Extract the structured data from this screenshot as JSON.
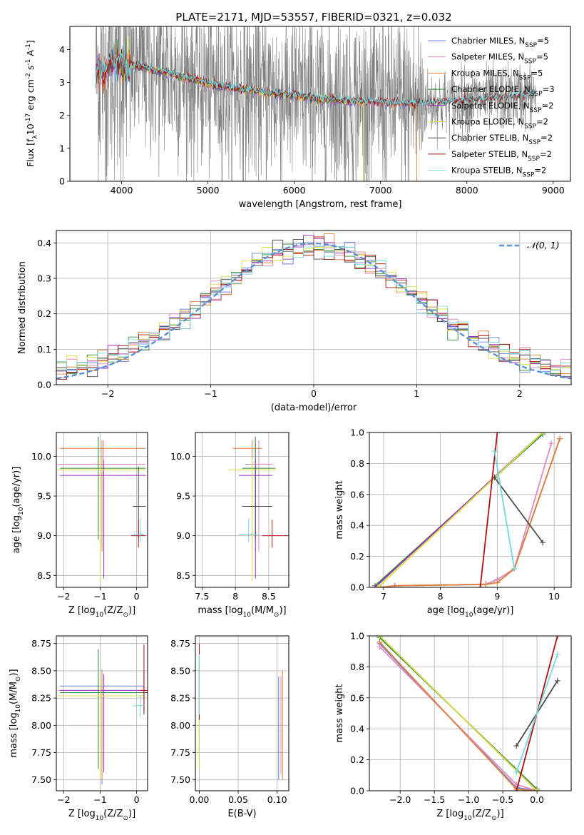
{
  "figure": {
    "title": "PLATE=2171, MJD=53557, FIBERID=0321, z=0.032"
  },
  "colors": {
    "Chabrier MILES": "#6b7fe0",
    "Salpeter MILES": "#e08ac0",
    "Kroupa MILES": "#e0803a",
    "Chabrier ELODIE": "#2f8a2f",
    "Salpeter ELODIE": "#9a2fc0",
    "Kroupa ELODIE": "#d8e040",
    "Chabrier STELIB": "#4a4a4a",
    "Salpeter STELIB": "#b01010",
    "Kroupa STELIB": "#70d8e0",
    "observed": "#808080",
    "normal": "#5b8fd6"
  },
  "chart_data": [
    {
      "id": "spectrum",
      "type": "line",
      "xlabel": "wavelength [Angstrom, rest frame]",
      "ylabel_parts": [
        "Flux [f",
        "λ",
        "10",
        "-17",
        " erg cm",
        "-2",
        " s",
        "-1",
        " A",
        "-1",
        "]"
      ],
      "xlim": [
        3400,
        9200
      ],
      "ylim": [
        0,
        4.7
      ],
      "xticks": [
        4000,
        5000,
        6000,
        7000,
        8000,
        9000
      ],
      "yticks": [
        0,
        1,
        2,
        3,
        4
      ],
      "legend_position": "top-right",
      "series": [
        {
          "name": "Chabrier MILES, N",
          "sub": "SSP",
          "suffix": "=5",
          "key": "Chabrier MILES",
          "range": [
            3700,
            7420
          ]
        },
        {
          "name": "Salpeter MILES, N",
          "sub": "SSP",
          "suffix": "=5",
          "key": "Salpeter MILES",
          "range": [
            3700,
            7420
          ]
        },
        {
          "name": "Kroupa MILES, N",
          "sub": "SSP",
          "suffix": "=5",
          "key": "Kroupa MILES",
          "range": [
            3700,
            7420
          ]
        },
        {
          "name": "Chabrier ELODIE, N",
          "sub": "SSP",
          "suffix": "=3",
          "key": "Chabrier ELODIE",
          "range": [
            3900,
            6800
          ]
        },
        {
          "name": "Salpeter ELODIE, N",
          "sub": "SSP",
          "suffix": "=2",
          "key": "Salpeter ELODIE",
          "range": [
            3900,
            6800
          ]
        },
        {
          "name": "Kroupa ELODIE, N",
          "sub": "SSP",
          "suffix": "=2",
          "key": "Kroupa ELODIE",
          "range": [
            3900,
            6800
          ]
        },
        {
          "name": "Chabrier STELIB, N",
          "sub": "SSP",
          "suffix": "=2",
          "key": "Chabrier STELIB",
          "range": [
            3700,
            8800
          ]
        },
        {
          "name": "Salpeter STELIB, N",
          "sub": "SSP",
          "suffix": "=2",
          "key": "Salpeter STELIB",
          "range": [
            3700,
            8800
          ]
        },
        {
          "name": "Kroupa STELIB, N",
          "sub": "SSP",
          "suffix": "=2",
          "key": "Kroupa STELIB",
          "range": [
            3700,
            8800
          ]
        }
      ],
      "observed_range": [
        3700,
        8800
      ],
      "continuum_x": [
        3700,
        3800,
        3900,
        4000,
        4200,
        4400,
        4600,
        4800,
        5000,
        5500,
        6000,
        6500,
        7000,
        7500,
        8000,
        8500,
        8800
      ],
      "continuum_y": [
        3.4,
        3.3,
        3.7,
        3.5,
        3.5,
        3.35,
        3.25,
        3.1,
        2.95,
        2.75,
        2.6,
        2.45,
        2.4,
        2.35,
        2.45,
        2.55,
        2.65
      ]
    },
    {
      "id": "residuals",
      "type": "histogram",
      "xlabel": "(data-model)/error",
      "ylabel": "Normed distribution",
      "xlim": [
        -2.5,
        2.5
      ],
      "ylim": [
        0,
        0.435
      ],
      "xticks": [
        -2,
        -1,
        0,
        1,
        2
      ],
      "yticks": [
        0.0,
        0.1,
        0.2,
        0.3,
        0.4
      ],
      "legend": "𝒩(0, 1)",
      "legend_position": "top-right",
      "bins": 50,
      "normal": {
        "mu": 0,
        "sigma": 1
      }
    },
    {
      "id": "age-vs-z",
      "type": "errorbar",
      "xlabel": [
        "Z [log",
        "10",
        "(Z/Z",
        "⊙",
        ")]"
      ],
      "ylabel": [
        "age  [log",
        "10",
        "(age/yr)]"
      ],
      "xlim": [
        -2.2,
        0.3
      ],
      "ylim": [
        8.35,
        10.3
      ],
      "xticks": [
        -2,
        -1,
        0
      ],
      "yticks": [
        8.5,
        9.0,
        9.5,
        10.0
      ],
      "points": [
        {
          "key": "Chabrier MILES",
          "x": -0.95,
          "xerr": [
            1.15,
            1.15
          ],
          "y": 9.9,
          "yerr": [
            1.1,
            0.3
          ]
        },
        {
          "key": "Salpeter MILES",
          "x": -0.9,
          "xerr": [
            1.25,
            1.15
          ],
          "y": 9.9,
          "yerr": [
            1.1,
            0.3
          ]
        },
        {
          "key": "Kroupa MILES",
          "x": -0.95,
          "xerr": [
            1.15,
            1.2
          ],
          "y": 10.1,
          "yerr": [
            1.3,
            0.1
          ]
        },
        {
          "key": "Chabrier ELODIE",
          "x": -1.05,
          "xerr": [
            1.05,
            1.3
          ],
          "y": 9.85,
          "yerr": [
            0.9,
            0.4
          ]
        },
        {
          "key": "Salpeter ELODIE",
          "x": -0.9,
          "xerr": [
            1.2,
            1.15
          ],
          "y": 9.76,
          "yerr": [
            1.3,
            0.2
          ]
        },
        {
          "key": "Kroupa ELODIE",
          "x": -1.0,
          "xerr": [
            1.15,
            1.25
          ],
          "y": 9.83,
          "yerr": [
            1.4,
            0.15
          ]
        },
        {
          "key": "Chabrier STELIB",
          "x": 0.05,
          "xerr": [
            0.15,
            0.2
          ],
          "y": 9.37,
          "yerr": [
            0.4,
            0.5
          ]
        },
        {
          "key": "Salpeter STELIB",
          "x": 0.05,
          "xerr": [
            0.2,
            0.2
          ],
          "y": 9.0,
          "yerr": [
            0.15,
            0.2
          ]
        },
        {
          "key": "Kroupa STELIB",
          "x": 0.1,
          "xerr": [
            0.2,
            0.1
          ],
          "y": 9.02,
          "yerr": [
            0.1,
            0.2
          ]
        }
      ]
    },
    {
      "id": "age-vs-mass",
      "type": "errorbar",
      "xlabel": [
        "mass [log",
        "10",
        "(M/M",
        "⊙",
        ")]"
      ],
      "ylabel": null,
      "xlim": [
        7.4,
        8.8
      ],
      "ylim": [
        8.35,
        10.3
      ],
      "xticks": [
        7.5,
        8.0,
        8.5
      ],
      "yticks": [
        8.5,
        9.0,
        9.5,
        10.0
      ],
      "points": [
        {
          "key": "Chabrier MILES",
          "x": 8.3,
          "xerr": [
            0.15,
            0.2
          ],
          "y": 9.9,
          "yerr": [
            1.1,
            0.3
          ]
        },
        {
          "key": "Salpeter MILES",
          "x": 8.35,
          "xerr": [
            0.15,
            0.2
          ],
          "y": 9.9,
          "yerr": [
            1.1,
            0.3
          ]
        },
        {
          "key": "Kroupa MILES",
          "x": 8.25,
          "xerr": [
            0.3,
            0.15
          ],
          "y": 10.1,
          "yerr": [
            1.3,
            0.1
          ]
        },
        {
          "key": "Chabrier ELODIE",
          "x": 8.3,
          "xerr": [
            0.2,
            0.3
          ],
          "y": 9.85,
          "yerr": [
            0.9,
            0.4
          ]
        },
        {
          "key": "Salpeter ELODIE",
          "x": 8.3,
          "xerr": [
            0.25,
            0.25
          ],
          "y": 9.76,
          "yerr": [
            1.3,
            0.2
          ]
        },
        {
          "key": "Kroupa ELODIE",
          "x": 8.25,
          "xerr": [
            0.35,
            0.35
          ],
          "y": 9.83,
          "yerr": [
            1.4,
            0.15
          ]
        },
        {
          "key": "Chabrier STELIB",
          "x": 8.3,
          "xerr": [
            0.2,
            0.25
          ],
          "y": 9.37,
          "yerr": [
            0.4,
            0.5
          ]
        },
        {
          "key": "Salpeter STELIB",
          "x": 8.55,
          "xerr": [
            0.15,
            0.3
          ],
          "y": 9.0,
          "yerr": [
            0.15,
            0.2
          ]
        },
        {
          "key": "Kroupa STELIB",
          "x": 8.2,
          "xerr": [
            0.15,
            0.15
          ],
          "y": 9.02,
          "yerr": [
            0.1,
            0.2
          ]
        }
      ]
    },
    {
      "id": "weight-vs-age",
      "type": "line",
      "xlabel": [
        "age  [log",
        "10",
        "(age/yr)]"
      ],
      "ylabel": "mass weight",
      "xlim": [
        6.75,
        10.3
      ],
      "ylim": [
        0,
        1
      ],
      "xticks": [
        7,
        8,
        9,
        10
      ],
      "yticks": [
        0.0,
        0.2,
        0.4,
        0.6,
        0.8,
        1.0
      ],
      "lines": [
        {
          "key": "Chabrier MILES",
          "x": [
            6.95,
            7.2,
            8.8,
            9.0,
            9.3,
            10.1
          ],
          "y": [
            0.0,
            0.01,
            0.02,
            0.05,
            0.12,
            0.96
          ]
        },
        {
          "key": "Salpeter MILES",
          "x": [
            6.95,
            7.2,
            8.8,
            9.0,
            9.3,
            9.95
          ],
          "y": [
            0.0,
            0.01,
            0.02,
            0.05,
            0.12,
            0.93
          ]
        },
        {
          "key": "Kroupa MILES",
          "x": [
            6.95,
            7.2,
            8.8,
            9.0,
            9.3,
            10.1
          ],
          "y": [
            0.0,
            0.01,
            0.02,
            0.03,
            0.12,
            0.96
          ]
        },
        {
          "key": "Chabrier ELODIE",
          "x": [
            6.85,
            9.8
          ],
          "y": [
            0.01,
            0.99
          ]
        },
        {
          "key": "Salpeter ELODIE",
          "x": [
            6.85,
            9.8
          ],
          "y": [
            0.0,
            1.0
          ]
        },
        {
          "key": "Kroupa ELODIE",
          "x": [
            6.9,
            9.8
          ],
          "y": [
            0.0,
            1.0
          ]
        },
        {
          "key": "Chabrier STELIB",
          "x": [
            8.95,
            9.8
          ],
          "y": [
            0.71,
            0.29
          ]
        },
        {
          "key": "Salpeter STELIB",
          "x": [
            8.7,
            9.0
          ],
          "y": [
            0.0,
            1.0
          ]
        },
        {
          "key": "Kroupa STELIB",
          "x": [
            8.95,
            9.3
          ],
          "y": [
            0.88,
            0.12
          ]
        }
      ]
    },
    {
      "id": "mass-vs-z",
      "type": "errorbar",
      "xlabel": [
        "Z [log",
        "10",
        "(Z/Z",
        "⊙",
        ")]"
      ],
      "ylabel": [
        "mass [log",
        "10",
        "(M/M",
        "⊙",
        ")]"
      ],
      "xlim": [
        -2.2,
        0.3
      ],
      "ylim": [
        7.4,
        8.82
      ],
      "xticks": [
        -2,
        -1,
        0
      ],
      "yticks": [
        7.5,
        7.75,
        8.0,
        8.25,
        8.5,
        8.75
      ],
      "points": [
        {
          "key": "Chabrier MILES",
          "x": -0.95,
          "xerr": [
            1.15,
            1.15
          ],
          "y": 8.36,
          "yerr": [
            0.9,
            0.15
          ]
        },
        {
          "key": "Salpeter MILES",
          "x": -0.9,
          "xerr": [
            1.25,
            1.15
          ],
          "y": 8.32,
          "yerr": [
            0.7,
            0.15
          ]
        },
        {
          "key": "Kroupa MILES",
          "x": -0.95,
          "xerr": [
            1.15,
            1.2
          ],
          "y": 8.3,
          "yerr": [
            0.8,
            0.2
          ]
        },
        {
          "key": "Chabrier ELODIE",
          "x": -1.05,
          "xerr": [
            1.05,
            1.3
          ],
          "y": 8.3,
          "yerr": [
            0.7,
            0.4
          ]
        },
        {
          "key": "Salpeter ELODIE",
          "x": -0.9,
          "xerr": [
            1.2,
            1.15
          ],
          "y": 8.32,
          "yerr": [
            0.75,
            0.15
          ]
        },
        {
          "key": "Kroupa ELODIE",
          "x": -1.0,
          "xerr": [
            1.15,
            1.25
          ],
          "y": 8.27,
          "yerr": [
            0.75,
            0.15
          ]
        },
        {
          "key": "Chabrier STELIB",
          "x": 0.2,
          "xerr": [
            0.1,
            0.1
          ],
          "y": 8.3,
          "yerr": [
            0.2,
            0.2
          ]
        },
        {
          "key": "Salpeter STELIB",
          "x": 0.2,
          "xerr": [
            0.1,
            0.1
          ],
          "y": 8.32,
          "yerr": [
            0.2,
            0.42
          ]
        },
        {
          "key": "Kroupa STELIB",
          "x": 0.1,
          "xerr": [
            0.2,
            0.1
          ],
          "y": 8.18,
          "yerr": [
            0.1,
            0.1
          ]
        }
      ]
    },
    {
      "id": "mass-vs-ebv",
      "type": "errorbar",
      "xlabel": "E(B-V)",
      "ylabel": null,
      "xlim": [
        -0.005,
        0.115
      ],
      "ylim": [
        7.4,
        8.82
      ],
      "xticks": [
        0.0,
        0.05,
        0.1
      ],
      "yticks": [
        7.5,
        7.75,
        8.0,
        8.25,
        8.5,
        8.75
      ],
      "points": [
        {
          "key": "Chabrier MILES",
          "x": 0.102,
          "y": 8.0,
          "yerr": [
            0.5,
            0.45
          ]
        },
        {
          "key": "Salpeter MILES",
          "x": 0.105,
          "y": 8.0,
          "yerr": [
            0.45,
            0.45
          ]
        },
        {
          "key": "Kroupa MILES",
          "x": 0.107,
          "y": 8.0,
          "yerr": [
            0.5,
            0.5
          ]
        },
        {
          "key": "Chabrier ELODIE",
          "x": 0.0,
          "y": 8.1,
          "yerr": [
            0.5,
            0.5
          ]
        },
        {
          "key": "Salpeter ELODIE",
          "x": 0.0,
          "y": 8.1,
          "yerr": [
            0.4,
            0.4
          ]
        },
        {
          "key": "Kroupa ELODIE",
          "x": 0.0,
          "y": 8.1,
          "yerr": [
            0.5,
            0.5
          ]
        },
        {
          "key": "Chabrier STELIB",
          "x": 0.0,
          "y": 8.35,
          "yerr": [
            0.25,
            0.3
          ]
        },
        {
          "key": "Salpeter STELIB",
          "x": 0.0,
          "y": 8.35,
          "yerr": [
            0.3,
            0.4
          ]
        },
        {
          "key": "Kroupa STELIB",
          "x": 0.0,
          "y": 8.3,
          "yerr": [
            0.2,
            0.35
          ]
        }
      ]
    },
    {
      "id": "weight-vs-z",
      "type": "line",
      "xlabel": [
        "Z [log",
        "10",
        "(Z/Z",
        "⊙",
        ")]"
      ],
      "ylabel": "mass weight",
      "xlim": [
        -2.45,
        0.5
      ],
      "ylim": [
        0,
        1
      ],
      "xticks": [
        -2.0,
        -1.5,
        -1.0,
        -0.5,
        0.0
      ],
      "yticks": [
        0.0,
        0.2,
        0.4,
        0.6,
        0.8,
        1.0
      ],
      "lines": [
        {
          "key": "Chabrier MILES",
          "x": [
            -2.3,
            -0.3,
            0.0
          ],
          "y": [
            0.95,
            0.02,
            0.0
          ]
        },
        {
          "key": "Salpeter MILES",
          "x": [
            -2.3,
            -0.3,
            0.0
          ],
          "y": [
            0.93,
            0.04,
            0.0
          ]
        },
        {
          "key": "Kroupa MILES",
          "x": [
            -2.3,
            -0.3,
            0.0
          ],
          "y": [
            0.96,
            0.01,
            0.0
          ]
        },
        {
          "key": "Chabrier ELODIE",
          "x": [
            -2.3,
            0.0
          ],
          "y": [
            0.99,
            0.01
          ]
        },
        {
          "key": "Salpeter ELODIE",
          "x": [
            -2.3,
            0.0
          ],
          "y": [
            1.0,
            0.0
          ]
        },
        {
          "key": "Kroupa ELODIE",
          "x": [
            -2.3,
            0.0
          ],
          "y": [
            1.0,
            0.0
          ]
        },
        {
          "key": "Chabrier STELIB",
          "x": [
            -0.3,
            0.3
          ],
          "y": [
            0.29,
            0.71
          ]
        },
        {
          "key": "Salpeter STELIB",
          "x": [
            -0.3,
            0.3
          ],
          "y": [
            0.0,
            1.0
          ]
        },
        {
          "key": "Kroupa STELIB",
          "x": [
            -0.3,
            0.3
          ],
          "y": [
            0.12,
            0.88
          ]
        }
      ]
    }
  ]
}
